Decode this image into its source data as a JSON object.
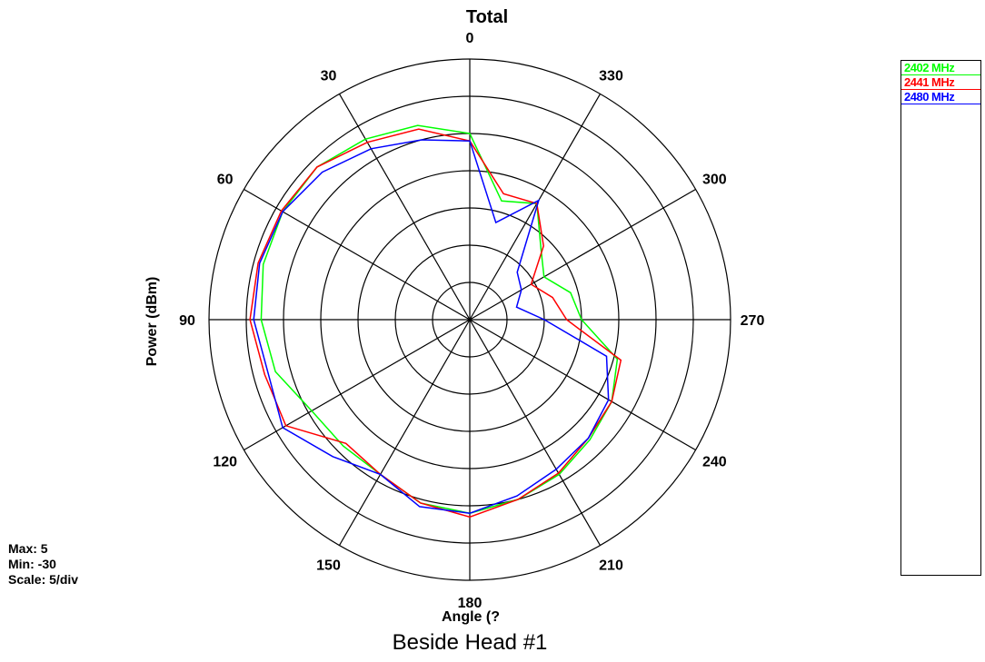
{
  "chart_data": {
    "type": "polar-line",
    "title": "Total",
    "caption": "Beside Head #1",
    "xlabel": "Angle (?",
    "ylabel": "Power  (dBm)",
    "angle_labels": [
      "0",
      "30",
      "60",
      "90",
      "120",
      "150",
      "180",
      "210",
      "240",
      "270",
      "300",
      "330"
    ],
    "angle_direction": "counterclockwise",
    "zero_at": "top",
    "rlim": [
      -30,
      5
    ],
    "r_step": 5,
    "stats": {
      "max": "Max: 5",
      "min": "Min: -30",
      "scale": "Scale: 5/div"
    },
    "legend_position": "right",
    "angles": [
      0,
      15,
      30,
      45,
      60,
      75,
      90,
      105,
      120,
      135,
      150,
      165,
      180,
      195,
      210,
      225,
      240,
      255,
      270,
      285,
      300,
      315,
      330,
      345
    ],
    "series": [
      {
        "name": "2402 MHz",
        "color": "#00ff00",
        "values": [
          -5.0,
          -3.0,
          -2.0,
          -1.0,
          -1.0,
          -1.3,
          -2.0,
          -3.0,
          -5.5,
          -6.0,
          -6.0,
          -4.5,
          -4.0,
          -5.0,
          -6.0,
          -7.2,
          -8.0,
          -9.5,
          -15.0,
          -16.0,
          -18.5,
          -16.5,
          -12.0,
          -13.5
        ]
      },
      {
        "name": "2441 MHz",
        "color": "#ff0000",
        "values": [
          -6.0,
          -3.5,
          -2.5,
          -1.0,
          -0.8,
          -0.6,
          -0.5,
          -1.5,
          -1.5,
          -6.5,
          -6.0,
          -4.5,
          -3.5,
          -5.0,
          -6.2,
          -7.5,
          -8.0,
          -9.0,
          -17.0,
          -18.5,
          -20.5,
          -16.0,
          -12.0,
          -12.5
        ]
      },
      {
        "name": "2480 MHz",
        "color": "#0000ff",
        "values": [
          -6.0,
          -5.0,
          -3.5,
          -2.0,
          -1.0,
          -0.8,
          -1.0,
          -2.0,
          -1.0,
          -4.0,
          -6.0,
          -4.0,
          -4.0,
          -5.5,
          -6.8,
          -7.5,
          -8.5,
          -11.0,
          -20.0,
          -23.5,
          -22.0,
          -21.0,
          -11.5,
          -16.5
        ]
      }
    ]
  }
}
